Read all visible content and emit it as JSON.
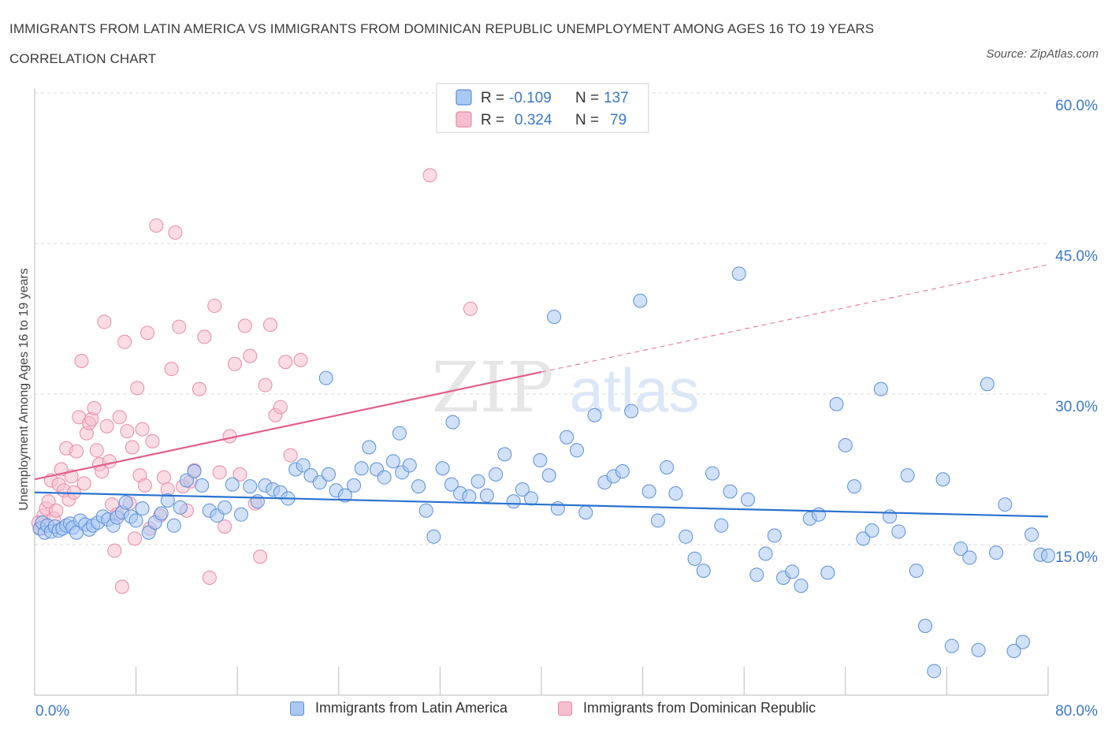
{
  "title": "IMMIGRANTS FROM LATIN AMERICA VS IMMIGRANTS FROM DOMINICAN REPUBLIC UNEMPLOYMENT AMONG AGES 16 TO 19 YEARS CORRELATION CHART",
  "source": "Source: ZipAtlas.com",
  "watermark": {
    "zip": "ZIP",
    "atlas": "atlas"
  },
  "legend_top": [
    {
      "r_label": "R =",
      "r_value": "-0.109",
      "n_label": "N =",
      "n_value": "137"
    },
    {
      "r_label": "R =",
      "r_value": "0.324",
      "n_label": "N =",
      "n_value": "79"
    }
  ],
  "colors": {
    "blue_fill": "#a9c8f3",
    "blue_stroke": "#5b8fd6",
    "blue_line": "#2a72d0",
    "pink_fill": "#f6bfd0",
    "pink_stroke": "#e58aa8",
    "pink_line": "#e0608e",
    "tick_text": "#3b78c8",
    "grid": "#d9d9d9"
  },
  "chart_data": {
    "type": "scatter",
    "title": "IMMIGRANTS FROM LATIN AMERICA VS IMMIGRANTS FROM DOMINICAN REPUBLIC UNEMPLOYMENT AMONG AGES 16 TO 19 YEARS CORRELATION CHART",
    "xlabel": "",
    "ylabel": "Unemployment Among Ages 16 to 19 years",
    "xlim": [
      0,
      80
    ],
    "ylim": [
      0,
      60
    ],
    "x_tick_labels": [
      "0.0%",
      "80.0%"
    ],
    "y_tick_labels": [
      "15.0%",
      "30.0%",
      "45.0%",
      "60.0%"
    ],
    "y_ticks": [
      15,
      30,
      45,
      60
    ],
    "grid": true,
    "legend_placement": "bottom-center",
    "series": [
      {
        "name": "Immigrants from Latin America",
        "color": "#a9c8f3",
        "trend": {
          "x": [
            0,
            80
          ],
          "y": [
            20.2,
            17.8
          ],
          "dashed_after": null
        },
        "points": [
          [
            0.4,
            16.6
          ],
          [
            0.6,
            17.2
          ],
          [
            0.8,
            16.2
          ],
          [
            1.0,
            16.9
          ],
          [
            1.3,
            16.3
          ],
          [
            1.6,
            16.8
          ],
          [
            1.9,
            16.4
          ],
          [
            2.2,
            16.6
          ],
          [
            2.5,
            16.9
          ],
          [
            2.8,
            17.1
          ],
          [
            3.0,
            16.7
          ],
          [
            3.3,
            16.2
          ],
          [
            3.6,
            17.4
          ],
          [
            4.0,
            17.0
          ],
          [
            4.3,
            16.5
          ],
          [
            4.6,
            16.9
          ],
          [
            5.0,
            17.2
          ],
          [
            5.4,
            17.8
          ],
          [
            5.8,
            17.5
          ],
          [
            6.2,
            16.9
          ],
          [
            6.5,
            17.7
          ],
          [
            6.9,
            18.2
          ],
          [
            7.2,
            19.2
          ],
          [
            7.6,
            17.8
          ],
          [
            8.0,
            17.4
          ],
          [
            8.5,
            18.6
          ],
          [
            9.0,
            16.2
          ],
          [
            9.5,
            17.2
          ],
          [
            10.0,
            18.1
          ],
          [
            10.5,
            19.4
          ],
          [
            11.0,
            16.9
          ],
          [
            11.5,
            18.7
          ],
          [
            12.0,
            21.4
          ],
          [
            12.6,
            22.3
          ],
          [
            13.2,
            20.9
          ],
          [
            13.8,
            18.4
          ],
          [
            14.4,
            17.9
          ],
          [
            15.0,
            18.7
          ],
          [
            15.6,
            21.0
          ],
          [
            16.3,
            18.0
          ],
          [
            17.0,
            20.8
          ],
          [
            17.6,
            19.3
          ],
          [
            18.2,
            20.9
          ],
          [
            18.8,
            20.5
          ],
          [
            19.4,
            20.2
          ],
          [
            20.0,
            19.6
          ],
          [
            20.6,
            22.5
          ],
          [
            21.2,
            22.9
          ],
          [
            21.8,
            21.9
          ],
          [
            22.5,
            21.2
          ],
          [
            23.2,
            22.0
          ],
          [
            23.8,
            20.4
          ],
          [
            24.5,
            19.9
          ],
          [
            25.2,
            20.9
          ],
          [
            25.8,
            22.6
          ],
          [
            26.4,
            24.7
          ],
          [
            27.0,
            22.5
          ],
          [
            27.6,
            21.7
          ],
          [
            28.3,
            23.3
          ],
          [
            29.0,
            22.2
          ],
          [
            29.6,
            22.9
          ],
          [
            30.3,
            20.8
          ],
          [
            30.9,
            18.4
          ],
          [
            31.5,
            15.8
          ],
          [
            32.2,
            22.6
          ],
          [
            32.9,
            21.0
          ],
          [
            33.6,
            20.1
          ],
          [
            34.3,
            19.8
          ],
          [
            35.0,
            21.3
          ],
          [
            35.7,
            19.9
          ],
          [
            36.4,
            22.0
          ],
          [
            37.1,
            24.0
          ],
          [
            37.8,
            19.3
          ],
          [
            38.5,
            20.5
          ],
          [
            39.2,
            19.6
          ],
          [
            39.9,
            23.4
          ],
          [
            40.6,
            21.9
          ],
          [
            41.3,
            18.6
          ],
          [
            42.0,
            25.7
          ],
          [
            42.8,
            24.4
          ],
          [
            43.5,
            18.2
          ],
          [
            44.2,
            27.9
          ],
          [
            45.0,
            21.2
          ],
          [
            45.7,
            21.8
          ],
          [
            46.4,
            22.3
          ],
          [
            47.1,
            28.3
          ],
          [
            47.8,
            39.3
          ],
          [
            48.5,
            20.3
          ],
          [
            49.2,
            17.4
          ],
          [
            49.9,
            22.7
          ],
          [
            50.6,
            20.1
          ],
          [
            51.4,
            15.8
          ],
          [
            52.1,
            13.6
          ],
          [
            52.8,
            12.4
          ],
          [
            53.5,
            22.1
          ],
          [
            54.2,
            16.9
          ],
          [
            54.9,
            20.3
          ],
          [
            55.6,
            42.0
          ],
          [
            56.3,
            19.5
          ],
          [
            57.0,
            12.0
          ],
          [
            57.7,
            14.1
          ],
          [
            58.4,
            15.9
          ],
          [
            59.1,
            11.7
          ],
          [
            59.8,
            12.3
          ],
          [
            60.5,
            10.9
          ],
          [
            61.2,
            17.6
          ],
          [
            61.9,
            18.0
          ],
          [
            62.6,
            12.2
          ],
          [
            63.3,
            29.0
          ],
          [
            64.0,
            24.9
          ],
          [
            64.7,
            20.8
          ],
          [
            65.4,
            15.6
          ],
          [
            66.1,
            16.4
          ],
          [
            66.8,
            30.5
          ],
          [
            67.5,
            17.8
          ],
          [
            68.2,
            16.3
          ],
          [
            68.9,
            21.9
          ],
          [
            69.6,
            12.4
          ],
          [
            70.3,
            6.9
          ],
          [
            71.0,
            2.4
          ],
          [
            71.7,
            21.5
          ],
          [
            72.4,
            4.9
          ],
          [
            73.1,
            14.6
          ],
          [
            73.8,
            13.7
          ],
          [
            74.5,
            4.5
          ],
          [
            75.2,
            31.0
          ],
          [
            75.9,
            14.2
          ],
          [
            76.6,
            19.0
          ],
          [
            77.3,
            4.4
          ],
          [
            78.0,
            5.3
          ],
          [
            78.7,
            16.0
          ],
          [
            79.4,
            14.0
          ],
          [
            80.0,
            13.9
          ],
          [
            41.0,
            37.7
          ],
          [
            33.0,
            27.2
          ],
          [
            28.8,
            26.1
          ],
          [
            23.0,
            31.6
          ]
        ]
      },
      {
        "name": "Immigrants from Dominican Republic",
        "color": "#f6bfd0",
        "trend": {
          "x": [
            0,
            40
          ],
          "y": [
            21.5,
            32.2
          ],
          "dashed_after": 40,
          "dashed_x": [
            40,
            80
          ],
          "dashed_y": [
            32.2,
            42.9
          ]
        },
        "points": [
          [
            0.3,
            17.2
          ],
          [
            0.5,
            16.6
          ],
          [
            0.7,
            17.9
          ],
          [
            0.9,
            18.6
          ],
          [
            1.1,
            19.3
          ],
          [
            1.3,
            21.4
          ],
          [
            1.5,
            17.6
          ],
          [
            1.7,
            18.4
          ],
          [
            1.9,
            21.0
          ],
          [
            2.1,
            22.5
          ],
          [
            2.3,
            20.4
          ],
          [
            2.5,
            24.6
          ],
          [
            2.7,
            19.5
          ],
          [
            2.9,
            21.8
          ],
          [
            3.1,
            20.2
          ],
          [
            3.3,
            24.3
          ],
          [
            3.5,
            27.7
          ],
          [
            3.7,
            33.3
          ],
          [
            3.9,
            21.1
          ],
          [
            4.1,
            26.1
          ],
          [
            4.3,
            27.1
          ],
          [
            4.5,
            27.5
          ],
          [
            4.7,
            28.6
          ],
          [
            4.9,
            24.4
          ],
          [
            5.1,
            23.0
          ],
          [
            5.3,
            22.3
          ],
          [
            5.5,
            37.2
          ],
          [
            5.7,
            26.8
          ],
          [
            5.9,
            23.3
          ],
          [
            6.1,
            19.0
          ],
          [
            6.3,
            14.4
          ],
          [
            6.5,
            18.0
          ],
          [
            6.7,
            27.7
          ],
          [
            6.9,
            10.8
          ],
          [
            7.1,
            35.2
          ],
          [
            7.3,
            26.3
          ],
          [
            7.5,
            19.1
          ],
          [
            7.7,
            24.7
          ],
          [
            7.9,
            15.6
          ],
          [
            8.1,
            30.6
          ],
          [
            8.3,
            21.9
          ],
          [
            8.5,
            26.5
          ],
          [
            8.7,
            20.9
          ],
          [
            8.9,
            36.1
          ],
          [
            9.1,
            16.6
          ],
          [
            9.3,
            25.3
          ],
          [
            9.6,
            46.8
          ],
          [
            9.9,
            17.9
          ],
          [
            10.2,
            21.7
          ],
          [
            10.5,
            20.5
          ],
          [
            10.8,
            32.5
          ],
          [
            11.1,
            46.1
          ],
          [
            11.4,
            36.7
          ],
          [
            11.7,
            20.8
          ],
          [
            12.0,
            18.4
          ],
          [
            12.3,
            21.3
          ],
          [
            12.6,
            22.4
          ],
          [
            13.0,
            30.5
          ],
          [
            13.4,
            35.7
          ],
          [
            13.8,
            11.7
          ],
          [
            14.2,
            38.8
          ],
          [
            14.6,
            22.2
          ],
          [
            15.0,
            16.8
          ],
          [
            15.4,
            25.8
          ],
          [
            15.8,
            33.0
          ],
          [
            16.2,
            22.0
          ],
          [
            16.6,
            36.8
          ],
          [
            17.0,
            33.8
          ],
          [
            17.4,
            19.1
          ],
          [
            17.8,
            13.8
          ],
          [
            18.2,
            30.9
          ],
          [
            18.6,
            36.9
          ],
          [
            19.0,
            27.9
          ],
          [
            19.4,
            28.7
          ],
          [
            19.8,
            33.2
          ],
          [
            20.2,
            23.9
          ],
          [
            21.0,
            33.4
          ],
          [
            31.2,
            51.8
          ],
          [
            34.4,
            38.5
          ]
        ]
      }
    ]
  },
  "bottom_legend": [
    {
      "label": "Immigrants from Latin America"
    },
    {
      "label": "Immigrants from Dominican Republic"
    }
  ]
}
